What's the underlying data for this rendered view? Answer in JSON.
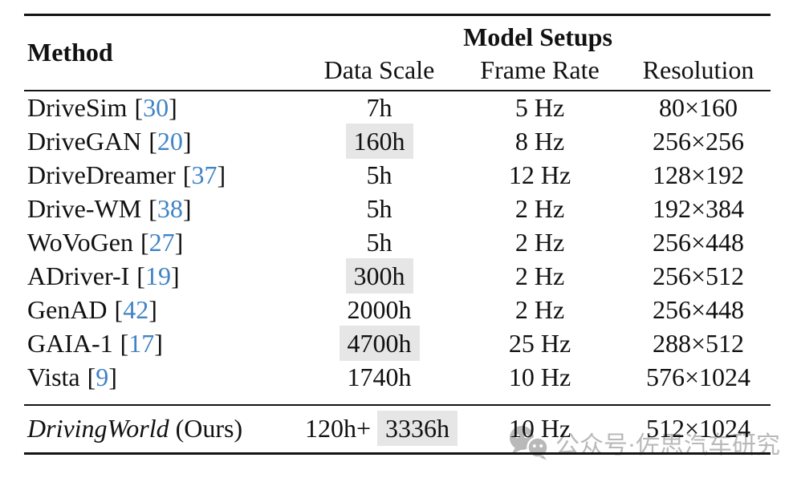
{
  "colors": {
    "accent_blue": "#4083c6",
    "highlight_gray": "#e6e6e6",
    "watermark_gray": "#b9b9b9",
    "rule_black": "#141414",
    "text_black": "#111111"
  },
  "table": {
    "header": {
      "method": "Method",
      "group_title": "Model Setups",
      "columns": [
        "Data Scale",
        "Frame Rate",
        "Resolution"
      ]
    },
    "rows": [
      {
        "method": "DriveSim",
        "method_suffix": "",
        "cite_open": "[",
        "cite": "30",
        "cite_close": "]",
        "data_scale_plain": "7h",
        "data_scale_marked": "",
        "frame_rate": "5 Hz",
        "resolution": "80×160",
        "method_italic": false,
        "final": false,
        "separator_before": false
      },
      {
        "method": "DriveGAN",
        "method_suffix": "",
        "cite_open": "[",
        "cite": "20",
        "cite_close": "]",
        "data_scale_plain": "",
        "data_scale_marked": "160h",
        "frame_rate": "8 Hz",
        "resolution": "256×256",
        "method_italic": false,
        "final": false,
        "separator_before": false
      },
      {
        "method": "DriveDreamer",
        "method_suffix": "",
        "cite_open": "[",
        "cite": "37",
        "cite_close": "]",
        "data_scale_plain": "5h",
        "data_scale_marked": "",
        "frame_rate": "12 Hz",
        "resolution": "128×192",
        "method_italic": false,
        "final": false,
        "separator_before": false
      },
      {
        "method": "Drive-WM",
        "method_suffix": "",
        "cite_open": "[",
        "cite": "38",
        "cite_close": "]",
        "data_scale_plain": "5h",
        "data_scale_marked": "",
        "frame_rate": "2 Hz",
        "resolution": "192×384",
        "method_italic": false,
        "final": false,
        "separator_before": false
      },
      {
        "method": "WoVoGen",
        "method_suffix": "",
        "cite_open": "[",
        "cite": "27",
        "cite_close": "]",
        "data_scale_plain": "5h",
        "data_scale_marked": "",
        "frame_rate": "2 Hz",
        "resolution": "256×448",
        "method_italic": false,
        "final": false,
        "separator_before": false
      },
      {
        "method": "ADriver-I",
        "method_suffix": "",
        "cite_open": "[",
        "cite": "19",
        "cite_close": "]",
        "data_scale_plain": "",
        "data_scale_marked": "300h",
        "frame_rate": "2 Hz",
        "resolution": "256×512",
        "method_italic": false,
        "final": false,
        "separator_before": false
      },
      {
        "method": "GenAD",
        "method_suffix": "",
        "cite_open": "[",
        "cite": "42",
        "cite_close": "]",
        "data_scale_plain": "2000h",
        "data_scale_marked": "",
        "frame_rate": "2 Hz",
        "resolution": "256×448",
        "method_italic": false,
        "final": false,
        "separator_before": false
      },
      {
        "method": "GAIA-1",
        "method_suffix": "",
        "cite_open": "[",
        "cite": "17",
        "cite_close": "]",
        "data_scale_plain": "",
        "data_scale_marked": "4700h",
        "frame_rate": "25 Hz",
        "resolution": "288×512",
        "method_italic": false,
        "final": false,
        "separator_before": false
      },
      {
        "method": "Vista",
        "method_suffix": "",
        "cite_open": "[",
        "cite": "9",
        "cite_close": "]",
        "data_scale_plain": "1740h",
        "data_scale_marked": "",
        "frame_rate": "10 Hz",
        "resolution": "576×1024",
        "method_italic": false,
        "final": false,
        "separator_before": false
      },
      {
        "method": "DrivingWorld",
        "method_suffix": " (Ours)",
        "cite_open": "",
        "cite": "",
        "cite_close": "",
        "data_scale_plain": "120h+ ",
        "data_scale_marked": "3336h",
        "frame_rate": "10 Hz",
        "resolution": "512×1024",
        "method_italic": true,
        "final": true,
        "separator_before": true
      }
    ]
  },
  "watermark": {
    "icon": "wechat-icon",
    "text": "公众号·佐思汽车研究"
  }
}
